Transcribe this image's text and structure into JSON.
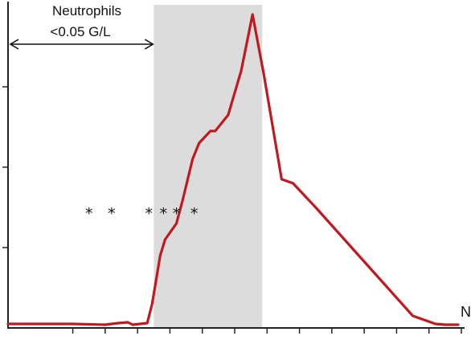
{
  "chart_data": {
    "type": "line",
    "title": "",
    "xlabel": "N",
    "ylabel": "",
    "xlim": [
      0,
      14
    ],
    "ylim": [
      0,
      4
    ],
    "grid": false,
    "line_color": "#c0191f",
    "band_color": "#dcdcdc",
    "highlight_band": {
      "x_start": 4.5,
      "x_end": 7.85
    },
    "series": [
      {
        "x": [
          0,
          1,
          2,
          3,
          3.4,
          3.7,
          3.85,
          4.3,
          4.45,
          4.7,
          4.85,
          5.2,
          5.4,
          5.7,
          5.9,
          6.25,
          6.4,
          6.8,
          7.2,
          7.55,
          7.9,
          8.45,
          8.8,
          9.5,
          10.5,
          11.5,
          12.5,
          13.2,
          13.5,
          13.9
        ],
        "y": [
          0.05,
          0.05,
          0.05,
          0.04,
          0.06,
          0.07,
          0.04,
          0.06,
          0.3,
          0.9,
          1.1,
          1.3,
          1.6,
          2.1,
          2.3,
          2.45,
          2.45,
          2.65,
          3.2,
          3.9,
          3.15,
          1.85,
          1.8,
          1.5,
          1.05,
          0.6,
          0.15,
          0.05,
          0.04,
          0.04
        ]
      }
    ],
    "annotations": {
      "arrow_label_line1": "Neutrophils",
      "arrow_label_line2": "<0.05 G/L",
      "arrow_x_range": [
        0,
        4.5
      ],
      "stars": [
        "*",
        "*",
        "*",
        "*",
        "*",
        "*"
      ],
      "stars_x": [
        2.5,
        3.2,
        4.35,
        4.8,
        5.2,
        5.75
      ],
      "stars_y": 1.5
    },
    "x_ticks": [
      2,
      3,
      4,
      5,
      6,
      7,
      8,
      9,
      10,
      11,
      12,
      13,
      14
    ],
    "y_ticks": [
      1,
      2,
      3
    ]
  }
}
